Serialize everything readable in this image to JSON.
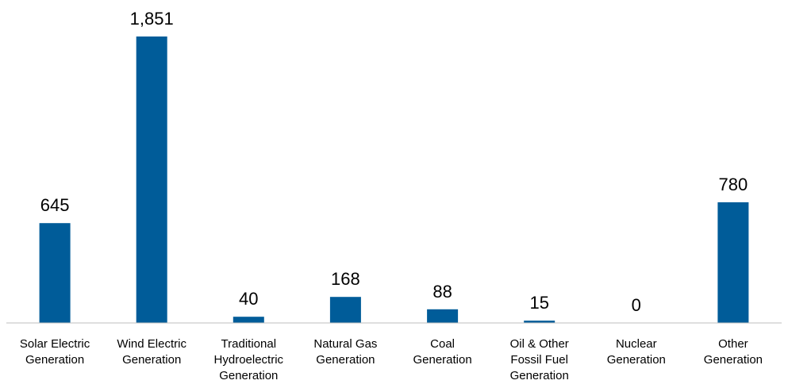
{
  "chart_data": {
    "type": "bar",
    "categories": [
      [
        "Solar Electric",
        "Generation"
      ],
      [
        "Wind Electric",
        "Generation"
      ],
      [
        "Traditional",
        "Hydroelectric",
        "Generation"
      ],
      [
        "Natural Gas",
        "Generation"
      ],
      [
        "Coal",
        "Generation"
      ],
      [
        "Oil & Other",
        "Fossil Fuel",
        "Generation"
      ],
      [
        "Nuclear",
        "Generation"
      ],
      [
        "Other",
        "Generation"
      ]
    ],
    "values": [
      645,
      1851,
      40,
      168,
      88,
      15,
      0,
      780
    ],
    "value_labels": [
      "645",
      "1,851",
      "40",
      "168",
      "88",
      "15",
      "0",
      "780"
    ],
    "title": "",
    "xlabel": "",
    "ylabel": "",
    "ylim": [
      0,
      1851
    ],
    "grid": false,
    "legend": "none",
    "bar_color": "#005C99"
  }
}
